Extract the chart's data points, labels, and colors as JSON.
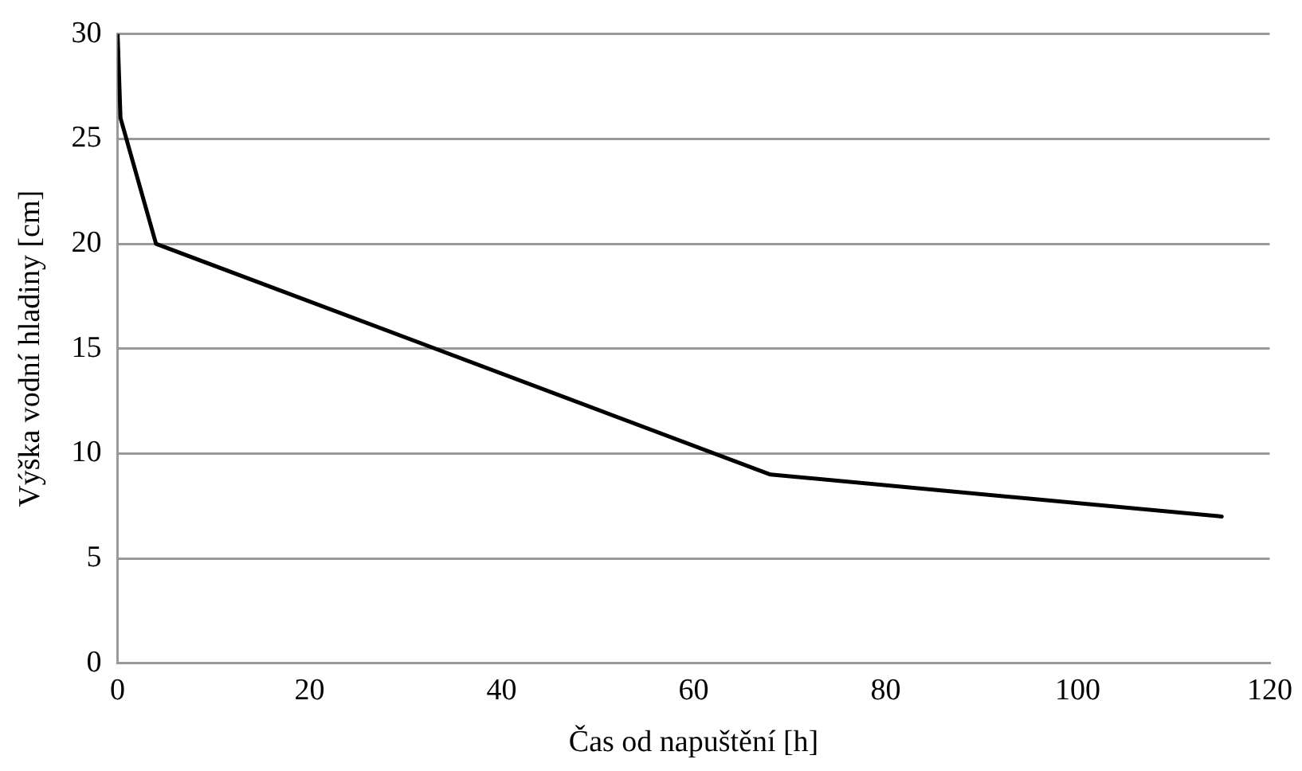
{
  "chart_data": {
    "type": "line",
    "xlabel": "Čas od napuštění [h]",
    "ylabel": "Výška vodní hladiny [cm]",
    "x": [
      0,
      0.3,
      4,
      68,
      115
    ],
    "series": [
      {
        "color": "#000000",
        "values": [
          30,
          26,
          20,
          9,
          7
        ]
      }
    ],
    "xlim": [
      0,
      120
    ],
    "xticks": [
      0,
      20,
      40,
      60,
      80,
      100,
      120
    ],
    "ylim": [
      0,
      30
    ],
    "yticks": [
      0,
      5,
      10,
      15,
      20,
      25,
      30
    ],
    "grid": "y",
    "legend": false,
    "marker": "none",
    "line_style": "solid"
  }
}
